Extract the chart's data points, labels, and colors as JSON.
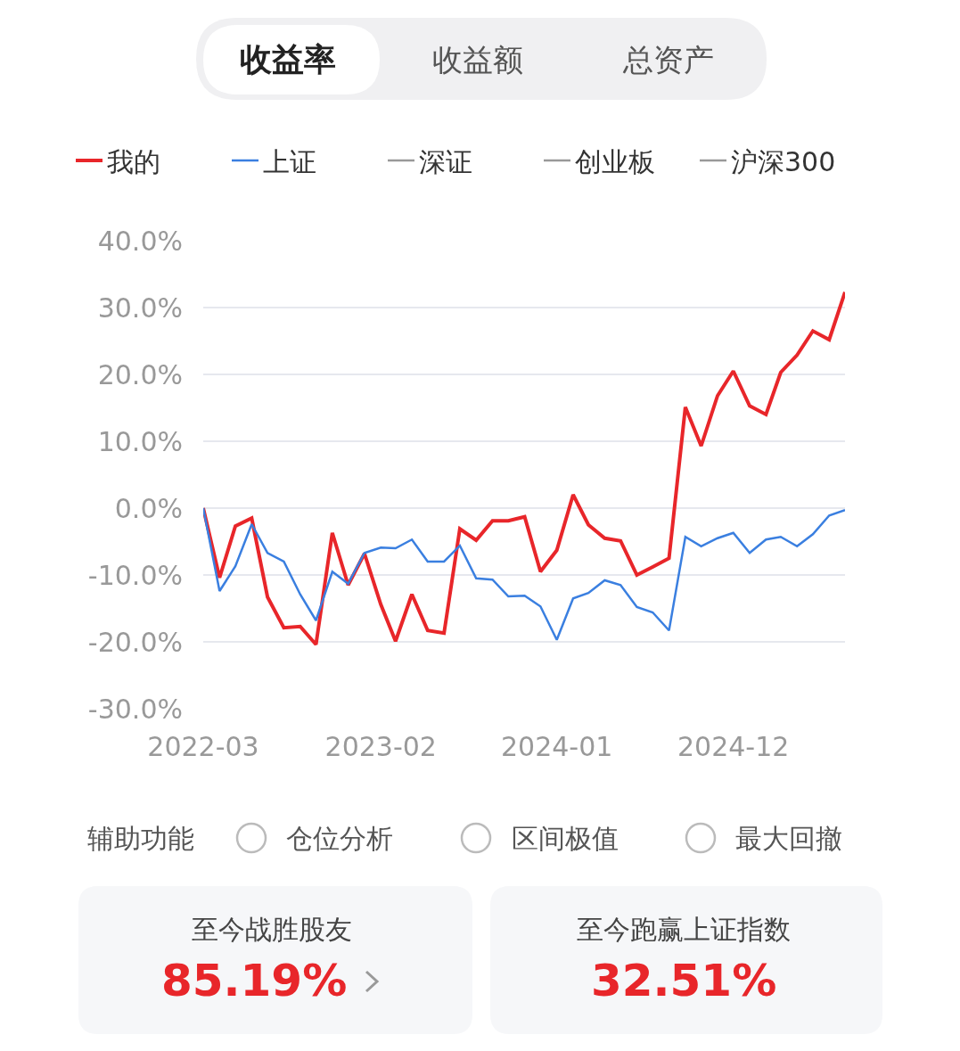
{
  "chart_data": {
    "type": "line",
    "x": [
      "2022-03",
      "2022-04",
      "2022-05",
      "2022-06",
      "2022-07",
      "2022-08",
      "2022-09",
      "2022-10",
      "2022-11",
      "2022-12",
      "2023-01",
      "2023-02",
      "2023-03",
      "2023-04",
      "2023-05",
      "2023-06",
      "2023-07",
      "2023-08",
      "2023-09",
      "2023-10",
      "2023-11",
      "2023-12",
      "2024-01",
      "2024-02",
      "2024-03",
      "2024-04",
      "2024-05",
      "2024-06",
      "2024-07",
      "2024-08",
      "2024-09",
      "2024-10",
      "2024-11",
      "2024-12",
      "2025-01",
      "2025-02",
      "2025-03",
      "2025-04",
      "2025-05",
      "2025-06",
      "2025-07"
    ],
    "series": [
      {
        "name": "我的",
        "color": "#e8262a",
        "values": [
          0,
          -10.4,
          -2.7,
          -1.5,
          -13.3,
          -17.9,
          -17.7,
          -20.4,
          -3.7,
          -11.5,
          -6.8,
          -14.4,
          -19.9,
          -12.9,
          -18.3,
          -18.7,
          -3.1,
          -4.8,
          -1.9,
          -1.9,
          -1.3,
          -9.5,
          -6.3,
          2.0,
          -2.5,
          -4.5,
          -4.9,
          -10.0,
          -8.8,
          -7.5,
          15.1,
          9.3,
          16.8,
          20.5,
          15.3,
          14.0,
          20.3,
          22.9,
          26.5,
          25.2,
          32.3
        ]
      },
      {
        "name": "上证",
        "color": "#3a7fe0",
        "values": [
          0,
          -12.4,
          -8.7,
          -2.4,
          -6.7,
          -8.0,
          -12.9,
          -16.8,
          -9.5,
          -11.3,
          -6.7,
          -5.9,
          -6.0,
          -4.7,
          -8.0,
          -8.0,
          -5.6,
          -10.5,
          -10.7,
          -13.2,
          -13.1,
          -14.7,
          -19.7,
          -13.5,
          -12.7,
          -10.8,
          -11.5,
          -14.8,
          -15.6,
          -18.3,
          -4.3,
          -5.7,
          -4.5,
          -3.7,
          -6.7,
          -4.7,
          -4.3,
          -5.7,
          -3.9,
          -1.1,
          -0.3
        ]
      },
      {
        "name": "深证",
        "color": "#999999",
        "values": [
          null,
          null,
          null,
          null,
          null,
          null,
          null,
          null,
          null,
          null,
          null,
          null,
          null,
          null,
          null,
          null,
          null,
          null,
          null,
          null,
          null,
          null,
          null,
          null,
          null,
          null,
          null,
          null,
          null,
          null,
          null,
          null,
          null,
          null,
          null,
          null,
          null,
          null,
          null,
          null,
          null
        ]
      },
      {
        "name": "创业板",
        "color": "#999999",
        "values": [
          null,
          null,
          null,
          null,
          null,
          null,
          null,
          null,
          null,
          null,
          null,
          null,
          null,
          null,
          null,
          null,
          null,
          null,
          null,
          null,
          null,
          null,
          null,
          null,
          null,
          null,
          null,
          null,
          null,
          null,
          null,
          null,
          null,
          null,
          null,
          null,
          null,
          null,
          null,
          null,
          null
        ]
      },
      {
        "name": "沪深300",
        "color": "#999999",
        "values": [
          null,
          null,
          null,
          null,
          null,
          null,
          null,
          null,
          null,
          null,
          null,
          null,
          null,
          null,
          null,
          null,
          null,
          null,
          null,
          null,
          null,
          null,
          null,
          null,
          null,
          null,
          null,
          null,
          null,
          null,
          null,
          null,
          null,
          null,
          null,
          null,
          null,
          null,
          null,
          null,
          null
        ]
      }
    ],
    "xlim": [
      "2022-03",
      "2025-07"
    ],
    "xticks": [
      "2022-03",
      "2023-02",
      "2024-01",
      "2024-12"
    ],
    "ylim": [
      -30,
      40
    ],
    "yticks": [
      {
        "value": -30,
        "label": "-30.0%"
      },
      {
        "value": -20,
        "label": "-20.0%"
      },
      {
        "value": -10,
        "label": "-10.0%"
      },
      {
        "value": 0,
        "label": "0.0%"
      },
      {
        "value": 10,
        "label": "10.0%"
      },
      {
        "value": 20,
        "label": "20.0%"
      },
      {
        "value": 30,
        "label": "30.0%"
      },
      {
        "value": 40,
        "label": "40.0%"
      }
    ],
    "grid": "y",
    "legend": "top left",
    "marker": "none",
    "line_style": "solid",
    "annotations": [
      "收益率",
      "收益额",
      "总资产",
      "辅助功能",
      "仓位分析",
      "区间极值",
      "最大回撤",
      "至今战胜股友",
      "85.19%",
      "至今跑赢上证指数",
      "32.51%"
    ]
  }
}
